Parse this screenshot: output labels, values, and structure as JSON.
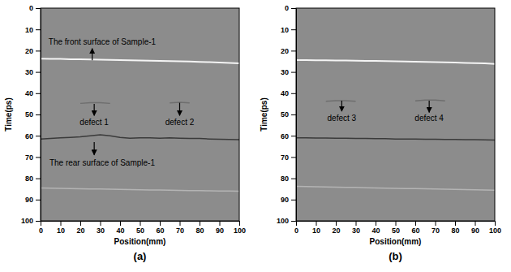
{
  "chart_data": [
    {
      "type": "line",
      "title": "(a)",
      "xlabel": "Position(mm)",
      "ylabel": "Time(ps)",
      "xlim": [
        0,
        100
      ],
      "ylim": [
        100,
        0
      ],
      "xticks": [
        0,
        10,
        20,
        30,
        40,
        50,
        60,
        70,
        80,
        90,
        100
      ],
      "yticks": [
        0,
        10,
        20,
        30,
        40,
        50,
        60,
        70,
        80,
        90,
        100
      ],
      "x": [
        0,
        5,
        10,
        15,
        20,
        25,
        30,
        35,
        40,
        45,
        50,
        55,
        60,
        65,
        70,
        75,
        80,
        85,
        90,
        95,
        100
      ],
      "series": [
        {
          "color": "#f4f4f4",
          "values": [
            23.8,
            23.9,
            23.9,
            24.0,
            24.0,
            24.1,
            24.2,
            24.3,
            24.4,
            24.5,
            24.6,
            24.7,
            24.8,
            24.9,
            25.0,
            25.1,
            25.3,
            25.4,
            25.6,
            25.8,
            26.0
          ]
        },
        {
          "color": "#3a3a3a",
          "values": [
            61.5,
            61.3,
            61.0,
            60.8,
            60.5,
            60.0,
            59.5,
            60.0,
            60.8,
            61.2,
            61.0,
            61.0,
            61.2,
            61.0,
            61.2,
            61.3,
            61.3,
            61.5,
            61.6,
            61.7,
            61.8
          ]
        },
        {
          "color": "#b4b4b4",
          "values": [
            84.5,
            84.6,
            84.7,
            84.8,
            84.9,
            85.0,
            85.0,
            85.1,
            85.2,
            85.3,
            85.4,
            85.5,
            85.5,
            85.6,
            85.7,
            85.8,
            85.8,
            85.9,
            86.0,
            86.0,
            86.1
          ]
        },
        {
          "color": "#6e6e6e",
          "values": [
            null,
            null,
            null,
            null,
            44.8,
            44.5,
            44.5,
            44.8,
            null,
            null,
            null,
            null,
            null,
            null,
            null,
            null,
            null,
            null,
            null,
            null,
            null
          ]
        },
        {
          "color": "#6e6e6e",
          "values": [
            null,
            null,
            null,
            null,
            null,
            null,
            null,
            null,
            null,
            null,
            null,
            null,
            null,
            44.6,
            44.3,
            44.6,
            null,
            null,
            null,
            null,
            null
          ]
        }
      ],
      "annotations": [
        {
          "text": "The front surface of Sample-1",
          "x": 31,
          "y": 16,
          "arrow_from": [
            26,
            24.5
          ],
          "arrow_to": [
            26,
            19
          ]
        },
        {
          "text": "defect 1",
          "x": 27,
          "y": 54,
          "arrow_from": [
            27,
            45
          ],
          "arrow_to": [
            27,
            50.5
          ]
        },
        {
          "text": "defect 2",
          "x": 70,
          "y": 54,
          "arrow_from": [
            70,
            44.5
          ],
          "arrow_to": [
            70,
            50.5
          ]
        },
        {
          "text": "The rear surface of Sample-1",
          "x": 31,
          "y": 73,
          "arrow_from": [
            27,
            63
          ],
          "arrow_to": [
            27,
            69
          ]
        }
      ]
    },
    {
      "type": "line",
      "title": "(b)",
      "xlabel": "Position(mm)",
      "ylabel": "Time(ps)",
      "xlim": [
        0,
        100
      ],
      "ylim": [
        100,
        0
      ],
      "xticks": [
        0,
        10,
        20,
        30,
        40,
        50,
        60,
        70,
        80,
        90,
        100
      ],
      "yticks": [
        0,
        10,
        20,
        30,
        40,
        50,
        60,
        70,
        80,
        90,
        100
      ],
      "x": [
        0,
        5,
        10,
        15,
        20,
        25,
        30,
        35,
        40,
        45,
        50,
        55,
        60,
        65,
        70,
        75,
        80,
        85,
        90,
        95,
        100
      ],
      "series": [
        {
          "color": "#f4f4f4",
          "values": [
            24.4,
            24.4,
            24.5,
            24.5,
            24.6,
            24.6,
            24.7,
            24.8,
            24.8,
            24.9,
            25.0,
            25.1,
            25.2,
            25.3,
            25.4,
            25.5,
            25.6,
            25.8,
            25.9,
            26.0,
            26.2
          ]
        },
        {
          "color": "#3a3a3a",
          "values": [
            61.0,
            61.0,
            61.1,
            61.1,
            61.2,
            61.2,
            61.3,
            61.3,
            61.4,
            61.4,
            61.5,
            61.5,
            61.5,
            61.6,
            61.6,
            61.7,
            61.7,
            61.8,
            61.8,
            61.9,
            62.0
          ]
        },
        {
          "color": "#b4b4b4",
          "values": [
            83.8,
            83.9,
            84.0,
            84.1,
            84.2,
            84.3,
            84.3,
            84.4,
            84.5,
            84.6,
            84.7,
            84.8,
            84.8,
            84.9,
            85.0,
            85.1,
            85.2,
            85.3,
            85.4,
            85.5,
            85.6
          ]
        },
        {
          "color": "#6e6e6e",
          "values": [
            null,
            null,
            null,
            43.8,
            43.5,
            43.5,
            43.8,
            null,
            null,
            null,
            null,
            null,
            null,
            null,
            null,
            null,
            null,
            null,
            null,
            null,
            null
          ]
        },
        {
          "color": "#6e6e6e",
          "values": [
            null,
            null,
            null,
            null,
            null,
            null,
            null,
            null,
            null,
            null,
            null,
            null,
            43.6,
            43.2,
            43.2,
            43.6,
            null,
            null,
            null,
            null,
            null
          ]
        }
      ],
      "annotations": [
        {
          "text": "defect 3",
          "x": 23,
          "y": 52,
          "arrow_from": [
            23,
            43.5
          ],
          "arrow_to": [
            23,
            48.5
          ]
        },
        {
          "text": "defect 4",
          "x": 67,
          "y": 52,
          "arrow_from": [
            67,
            43.5
          ],
          "arrow_to": [
            67,
            49
          ]
        }
      ]
    }
  ]
}
